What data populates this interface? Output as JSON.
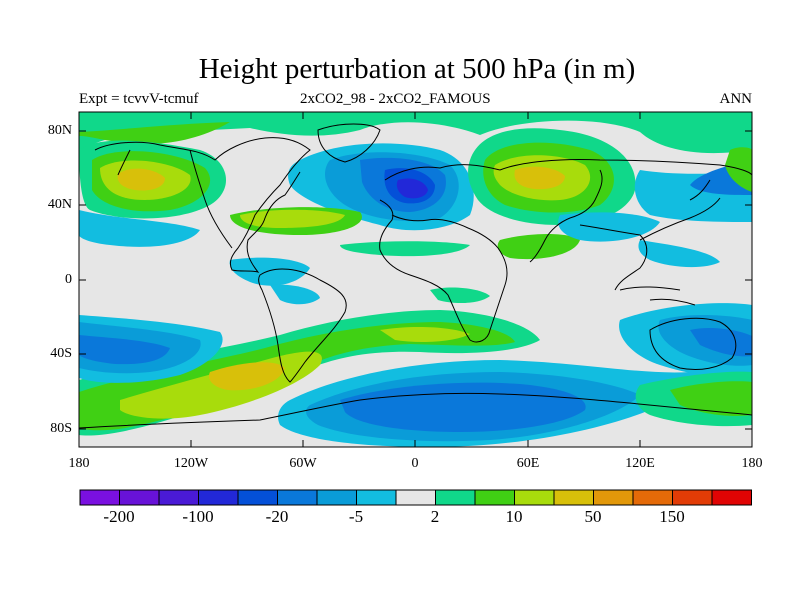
{
  "title": "Height perturbation at 500 hPa (in m)",
  "subtitle_left": "Expt = tcvvV-tcmuf",
  "subtitle_center": "2xCO2_98 - 2xCO2_FAMOUS",
  "subtitle_right": "ANN",
  "map": {
    "projection": "cylindrical-equidistant",
    "lon_range": [
      -180,
      180
    ],
    "lat_range": [
      -90,
      90
    ],
    "background_color": "#e6e6e6",
    "coastline_color": "#000000",
    "y_ticks": [
      "80N",
      "40N",
      "0",
      "40S",
      "80S"
    ],
    "x_ticks": [
      "180",
      "120W",
      "60W",
      "0",
      "60E",
      "120E",
      "180"
    ]
  },
  "colorbar": {
    "colors": [
      "#7a10e0",
      "#6812d8",
      "#4a1ad6",
      "#2228d8",
      "#0450d8",
      "#0a78da",
      "#0a9cd8",
      "#12bde0",
      "#e6e6e6",
      "#10d88a",
      "#40d014",
      "#a8dc0c",
      "#d8c00a",
      "#e2980a",
      "#e46a08",
      "#e23c06",
      "#e00404"
    ],
    "labels": [
      "-200",
      "-100",
      "-20",
      "-5",
      "2",
      "10",
      "50",
      "150"
    ]
  }
}
